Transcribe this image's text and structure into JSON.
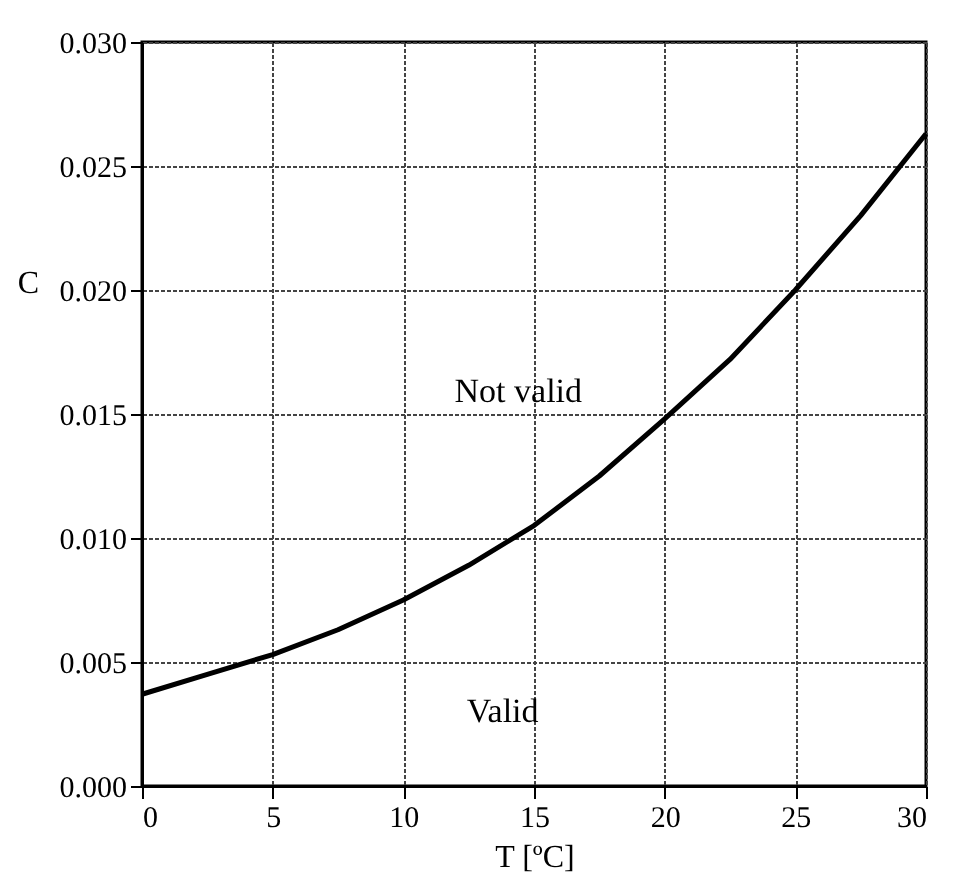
{
  "chart_data": {
    "type": "line",
    "xlabel": "T [ºC]",
    "ylabel": "C",
    "x": [
      0,
      2.5,
      5,
      7.5,
      10,
      12.5,
      15,
      17.5,
      20,
      22.5,
      25,
      27.5,
      30
    ],
    "series": [
      {
        "color": "#000000",
        "values": [
          0.0037,
          0.0045,
          0.0053,
          0.0063,
          0.0075,
          0.0089,
          0.0105,
          0.0125,
          0.0148,
          0.0172,
          0.02,
          0.023,
          0.0263
        ]
      }
    ],
    "xlim": [
      0,
      30
    ],
    "xticks": [
      0,
      5,
      10,
      15,
      20,
      25,
      30
    ],
    "ylim": [
      0,
      0.03
    ],
    "yticks": [
      {
        "value": 0,
        "label": "0.000"
      },
      {
        "value": 0.005,
        "label": "0.005"
      },
      {
        "value": 0.01,
        "label": "0.010"
      },
      {
        "value": 0.015,
        "label": "0.015"
      },
      {
        "value": 0.02,
        "label": "0.020"
      },
      {
        "value": 0.025,
        "label": "0.025"
      },
      {
        "value": 0.03,
        "label": "0.030"
      }
    ],
    "grid": true,
    "marker": "none",
    "line_style": "solid",
    "annotations": [
      "Not valid",
      "Valid"
    ]
  }
}
